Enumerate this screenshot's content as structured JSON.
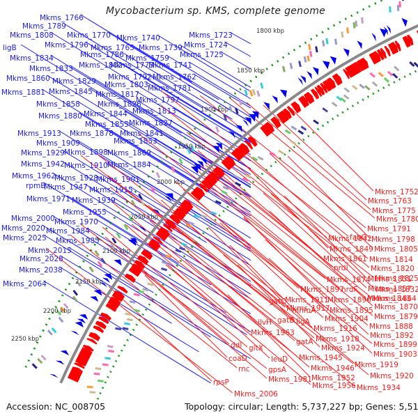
{
  "header": {
    "title": "Mycobacterium sp. KMS, complete genome"
  },
  "footer": {
    "accession": "Accession: NC_008705",
    "summary": "Topology: circular; Length: 5,737,227 bp; Genes: 5,516"
  },
  "colors": {
    "forward_strand": "#ff0000",
    "reverse_strand": "#0000ff",
    "backbone": "#888888",
    "tick": "#119911",
    "label_forward": "#ff1a1a",
    "label_reverse": "#1a1aff"
  },
  "scale_labels": [
    "1800 kbp",
    "1850 kbp",
    "1900 kbp",
    "1950 kbp",
    "2000 kbp",
    "2050 kbp",
    "2100 kbp",
    "2150 kbp",
    "2200 kbp",
    "2250 kbp"
  ],
  "reverse_labels": [
    {
      "text": "Mkms_1766"
    },
    {
      "text": "Mkms_1789"
    },
    {
      "text": "Mkms_1808"
    },
    {
      "text": "ligB"
    },
    {
      "text": "Mkms_1834"
    },
    {
      "text": "Mkms_1770"
    },
    {
      "text": "Mkms_1740"
    },
    {
      "text": "Mkms_1796"
    },
    {
      "text": "Mkms_1765"
    },
    {
      "text": "Mkms_1739"
    },
    {
      "text": "Mkms_1786"
    },
    {
      "text": "Mkms_1759"
    },
    {
      "text": "Mkms_1802"
    },
    {
      "text": "Mkms_1773"
    },
    {
      "text": "Mkms_1741"
    },
    {
      "text": "Mkms_1833"
    },
    {
      "text": "Mkms_1792"
    },
    {
      "text": "Mkms_1762"
    },
    {
      "text": "Mkms_1860"
    },
    {
      "text": "Mkms_1829"
    },
    {
      "text": "Mkms_1803"
    },
    {
      "text": "Mkms_1781"
    },
    {
      "text": "Mkms_1881"
    },
    {
      "text": "Mkms_1845"
    },
    {
      "text": "Mkms_1817"
    },
    {
      "text": "Mkms_1797"
    },
    {
      "text": "Mkms_1858"
    },
    {
      "text": "Mkms_1826"
    },
    {
      "text": "Mkms_1880"
    },
    {
      "text": "Mkms_1844"
    },
    {
      "text": "Mkms_1813"
    },
    {
      "text": "Mkms_1855"
    },
    {
      "text": "Mkms_1827"
    },
    {
      "text": "Mkms_1913"
    },
    {
      "text": "Mkms_1878"
    },
    {
      "text": "Mkms_1841"
    },
    {
      "text": "Mkms_1909"
    },
    {
      "text": "Mkms_1853"
    },
    {
      "text": "Mkms_1929"
    },
    {
      "text": "Mkms_1898"
    },
    {
      "text": "Mkms_1869"
    },
    {
      "text": "Mkms_1942"
    },
    {
      "text": "Mkms_1910"
    },
    {
      "text": "Mkms_1884"
    },
    {
      "text": "Mkms_1962"
    },
    {
      "text": "Mkms_1928"
    },
    {
      "text": "Mkms_1901"
    },
    {
      "text": "rpmB"
    },
    {
      "text": "Mkms_1947"
    },
    {
      "text": "Mkms_1915"
    },
    {
      "text": "Mkms_1971"
    },
    {
      "text": "Mkms_1939"
    },
    {
      "text": "Mkms_1955"
    },
    {
      "text": "Mkms_2000"
    },
    {
      "text": "Mkms_1970"
    },
    {
      "text": "Mkms_2020"
    },
    {
      "text": "Mkms_1984"
    },
    {
      "text": "Mkms_2025"
    },
    {
      "text": "Mkms_1985"
    },
    {
      "text": "Mkms_2015"
    },
    {
      "text": "Mkms_2028"
    },
    {
      "text": "Mkms_2038"
    },
    {
      "text": "Mkms_2064"
    },
    {
      "text": "Mkms_1723"
    },
    {
      "text": "Mkms_1724"
    },
    {
      "text": "Mkms_1725"
    }
  ],
  "forward_labels": [
    {
      "text": "Mkms_1752"
    },
    {
      "text": "Mkms_1763"
    },
    {
      "text": "Mkms_1775"
    },
    {
      "text": "Mkms_1780"
    },
    {
      "text": "Mkms_1791"
    },
    {
      "text": "fabG"
    },
    {
      "text": "Mkms_1798"
    },
    {
      "text": "Mkms_1805"
    },
    {
      "text": "Mkms_1814"
    },
    {
      "text": "Mkms_1820"
    },
    {
      "text": "Mkms_1842"
    },
    {
      "text": "Mkms_1825"
    },
    {
      "text": "Mkms_1849"
    },
    {
      "text": "Mkms_1832"
    },
    {
      "text": "Mkms_1861"
    },
    {
      "text": "nrdI"
    },
    {
      "text": "Mkms_1843"
    },
    {
      "text": "Mkms_1874"
    },
    {
      "text": "Mkms_1851"
    },
    {
      "text": "Mkms_1857"
    },
    {
      "text": "Mkms_1897"
    },
    {
      "text": "nrdF"
    },
    {
      "text": "Mkms_1864"
    },
    {
      "text": "Mkms_1911"
    },
    {
      "text": "Mkms_1890"
    },
    {
      "text": "Mkms_1870"
    },
    {
      "text": "Mkms_1917"
    },
    {
      "text": "Mkms_1895"
    },
    {
      "text": "Mkms_1879"
    },
    {
      "text": "gatC"
    },
    {
      "text": "mnmA"
    },
    {
      "text": "Mkms_1904"
    },
    {
      "text": "Mkms_1888"
    },
    {
      "text": "ilvH"
    },
    {
      "text": "gatB"
    },
    {
      "text": "ligA"
    },
    {
      "text": "Mkms_1916"
    },
    {
      "text": "Mkms_1892"
    },
    {
      "text": "Mkms_1963"
    },
    {
      "text": "gatA"
    },
    {
      "text": "Mkms_1918"
    },
    {
      "text": "Mkms_1899"
    },
    {
      "text": "Mkms_1924"
    },
    {
      "text": "Mkms_1903"
    },
    {
      "text": "ddl"
    },
    {
      "text": "gltX"
    },
    {
      "text": "Mkms_1945"
    },
    {
      "text": "Mkms_1919"
    },
    {
      "text": "coaD"
    },
    {
      "text": "leuD"
    },
    {
      "text": "Mkms_1946"
    },
    {
      "text": "Mkms_1920"
    },
    {
      "text": "rnc"
    },
    {
      "text": "gpsA"
    },
    {
      "text": "Mkms_1952"
    },
    {
      "text": "rpsP"
    },
    {
      "text": "Mkms_1981"
    },
    {
      "text": "Mkms_1956"
    },
    {
      "text": "Mkms_1934"
    },
    {
      "text": "Mkms_2006"
    }
  ]
}
